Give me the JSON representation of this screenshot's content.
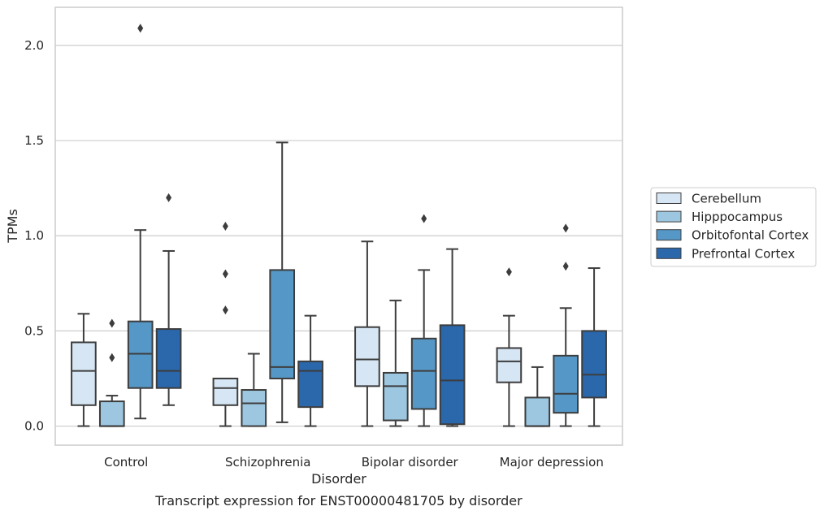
{
  "chart_data": {
    "type": "box",
    "title": "",
    "caption": "Transcript expression for ENST00000481705 by disorder",
    "xlabel": "Disorder",
    "ylabel": "TPMs",
    "ylim": [
      -0.1,
      2.2
    ],
    "yticks": [
      0.0,
      0.5,
      1.0,
      1.5,
      2.0
    ],
    "ytick_labels": [
      "0.0",
      "0.5",
      "1.0",
      "1.5",
      "2.0"
    ],
    "grid": "horizontal",
    "legend_position": "right",
    "categories": [
      "Control",
      "Schizophrenia",
      "Bipolar disorder",
      "Major depression"
    ],
    "series": [
      {
        "name": "Cerebellum",
        "color": "#d6e6f4",
        "boxes": [
          {
            "whislo": 0.0,
            "q1": 0.11,
            "med": 0.29,
            "q3": 0.44,
            "whishi": 0.59,
            "fliers": []
          },
          {
            "whislo": 0.0,
            "q1": 0.11,
            "med": 0.2,
            "q3": 0.25,
            "whishi": 0.25,
            "fliers": [
              0.61,
              0.8,
              1.05
            ]
          },
          {
            "whislo": 0.0,
            "q1": 0.21,
            "med": 0.35,
            "q3": 0.52,
            "whishi": 0.97,
            "fliers": []
          },
          {
            "whislo": 0.0,
            "q1": 0.23,
            "med": 0.34,
            "q3": 0.41,
            "whishi": 0.58,
            "fliers": [
              0.81
            ]
          }
        ]
      },
      {
        "name": "Hipppocampus",
        "color": "#9dc7e0",
        "boxes": [
          {
            "whislo": 0.0,
            "q1": 0.0,
            "med": 0.0,
            "q3": 0.13,
            "whishi": 0.16,
            "fliers": [
              0.36,
              0.54
            ]
          },
          {
            "whislo": 0.0,
            "q1": 0.0,
            "med": 0.12,
            "q3": 0.19,
            "whishi": 0.38,
            "fliers": []
          },
          {
            "whislo": 0.0,
            "q1": 0.03,
            "med": 0.21,
            "q3": 0.28,
            "whishi": 0.66,
            "fliers": []
          },
          {
            "whislo": 0.0,
            "q1": 0.0,
            "med": 0.0,
            "q3": 0.15,
            "whishi": 0.31,
            "fliers": []
          }
        ]
      },
      {
        "name": "Orbitofontal Cortex",
        "color": "#5597c6",
        "boxes": [
          {
            "whislo": 0.04,
            "q1": 0.2,
            "med": 0.38,
            "q3": 0.55,
            "whishi": 1.03,
            "fliers": [
              2.09
            ]
          },
          {
            "whislo": 0.02,
            "q1": 0.25,
            "med": 0.31,
            "q3": 0.82,
            "whishi": 1.49,
            "fliers": []
          },
          {
            "whislo": 0.0,
            "q1": 0.09,
            "med": 0.29,
            "q3": 0.46,
            "whishi": 0.82,
            "fliers": [
              1.09
            ]
          },
          {
            "whislo": 0.0,
            "q1": 0.07,
            "med": 0.17,
            "q3": 0.37,
            "whishi": 0.62,
            "fliers": [
              0.84,
              1.04
            ]
          }
        ]
      },
      {
        "name": "Prefrontal Cortex",
        "color": "#2a67ab",
        "boxes": [
          {
            "whislo": 0.11,
            "q1": 0.2,
            "med": 0.29,
            "q3": 0.51,
            "whishi": 0.92,
            "fliers": [
              1.2
            ]
          },
          {
            "whislo": 0.0,
            "q1": 0.1,
            "med": 0.29,
            "q3": 0.34,
            "whishi": 0.58,
            "fliers": []
          },
          {
            "whislo": 0.0,
            "q1": 0.01,
            "med": 0.24,
            "q3": 0.53,
            "whishi": 0.93,
            "fliers": []
          },
          {
            "whislo": 0.0,
            "q1": 0.15,
            "med": 0.27,
            "q3": 0.5,
            "whishi": 0.83,
            "fliers": []
          }
        ]
      }
    ]
  }
}
